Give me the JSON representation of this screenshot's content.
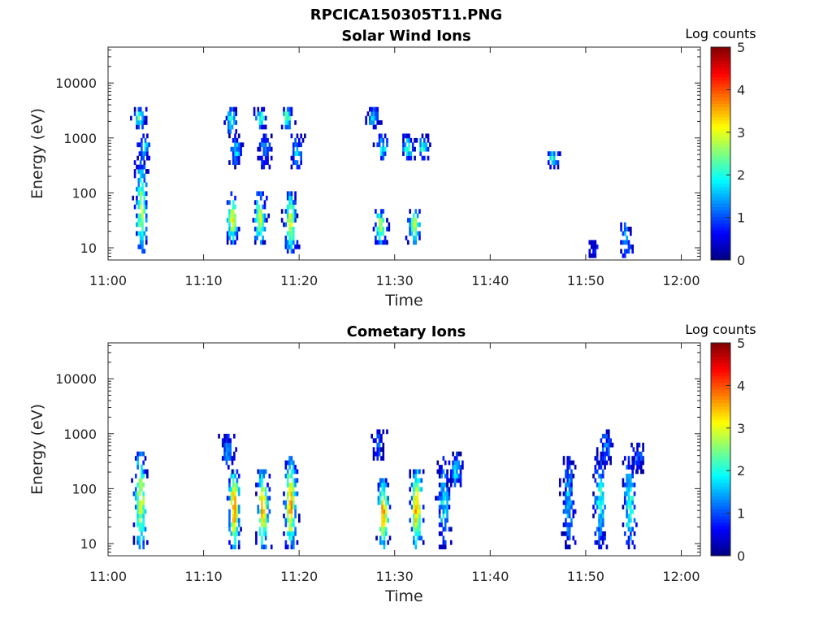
{
  "figure": {
    "suptitle": "RPCICA150305T11.PNG"
  },
  "colors": {
    "jet": [
      "#00007f",
      "#0000ff",
      "#007fff",
      "#00ffff",
      "#7fff7f",
      "#ffff00",
      "#ff7f00",
      "#ff0000",
      "#7f0000"
    ]
  },
  "chart_data": [
    {
      "type": "heatmap",
      "title": "Solar Wind Ions",
      "xlabel": "Time",
      "ylabel": "Energy (eV)",
      "x_ticks": [
        "11:00",
        "11:10",
        "11:20",
        "11:30",
        "11:40",
        "11:50",
        "12:00"
      ],
      "x_tick_minutes": [
        0,
        10,
        20,
        30,
        40,
        50,
        60
      ],
      "xlim_minutes": [
        0,
        62
      ],
      "y_scale": "log",
      "ylim": [
        6,
        45000
      ],
      "y_ticks": [
        "10",
        "100",
        "1000",
        "10000"
      ],
      "y_tick_values": [
        10,
        100,
        1000,
        10000
      ],
      "colorbar": {
        "label": "Log counts",
        "range": [
          0,
          5
        ],
        "ticks": [
          "0",
          "1",
          "2",
          "3",
          "4",
          "5"
        ]
      },
      "clusters": [
        {
          "t": 3.4,
          "e_lo": 8,
          "e_hi": 300,
          "peak": 2.7
        },
        {
          "t": 3.2,
          "e_lo": 1500,
          "e_hi": 3000,
          "peak": 2.2
        },
        {
          "t": 3.7,
          "e_lo": 400,
          "e_hi": 1000,
          "peak": 1.6
        },
        {
          "t": 12.9,
          "e_lo": 12,
          "e_hi": 80,
          "peak": 3.0
        },
        {
          "t": 12.8,
          "e_lo": 1200,
          "e_hi": 3000,
          "peak": 2.1
        },
        {
          "t": 13.3,
          "e_lo": 300,
          "e_hi": 900,
          "peak": 1.6
        },
        {
          "t": 15.8,
          "e_lo": 12,
          "e_hi": 80,
          "peak": 3.0
        },
        {
          "t": 15.9,
          "e_lo": 1500,
          "e_hi": 3000,
          "peak": 2.0
        },
        {
          "t": 16.3,
          "e_lo": 300,
          "e_hi": 900,
          "peak": 1.5
        },
        {
          "t": 19.0,
          "e_lo": 8,
          "e_hi": 90,
          "peak": 3.0
        },
        {
          "t": 18.6,
          "e_lo": 1500,
          "e_hi": 3000,
          "peak": 2.4
        },
        {
          "t": 19.6,
          "e_lo": 300,
          "e_hi": 900,
          "peak": 1.6
        },
        {
          "t": 28.4,
          "e_lo": 12,
          "e_hi": 40,
          "peak": 2.9
        },
        {
          "t": 27.6,
          "e_lo": 1500,
          "e_hi": 3000,
          "peak": 1.8
        },
        {
          "t": 28.6,
          "e_lo": 400,
          "e_hi": 900,
          "peak": 2.0
        },
        {
          "t": 32.0,
          "e_lo": 12,
          "e_hi": 40,
          "peak": 3.0
        },
        {
          "t": 31.3,
          "e_lo": 400,
          "e_hi": 900,
          "peak": 2.1
        },
        {
          "t": 32.9,
          "e_lo": 400,
          "e_hi": 900,
          "peak": 2.1
        },
        {
          "t": 46.5,
          "e_lo": 300,
          "e_hi": 500,
          "peak": 2.0
        },
        {
          "t": 50.8,
          "e_lo": 6,
          "e_hi": 12,
          "peak": 0.7
        },
        {
          "t": 54.1,
          "e_lo": 6,
          "e_hi": 25,
          "peak": 1.5
        }
      ]
    },
    {
      "type": "heatmap",
      "title": "Cometary Ions",
      "xlabel": "Time",
      "ylabel": "Energy (eV)",
      "x_ticks": [
        "11:00",
        "11:10",
        "11:20",
        "11:30",
        "11:40",
        "11:50",
        "12:00"
      ],
      "x_tick_minutes": [
        0,
        10,
        20,
        30,
        40,
        50,
        60
      ],
      "xlim_minutes": [
        0,
        62
      ],
      "y_scale": "log",
      "ylim": [
        6,
        45000
      ],
      "y_ticks": [
        "10",
        "100",
        "1000",
        "10000"
      ],
      "y_tick_values": [
        10,
        100,
        1000,
        10000
      ],
      "colorbar": {
        "label": "Log counts",
        "range": [
          0,
          5
        ],
        "ticks": [
          "0",
          "1",
          "2",
          "3",
          "4",
          "5"
        ]
      },
      "clusters": [
        {
          "t": 3.3,
          "e_lo": 8,
          "e_hi": 400,
          "peak": 3.2
        },
        {
          "t": 13.1,
          "e_lo": 8,
          "e_hi": 200,
          "peak": 3.6
        },
        {
          "t": 12.4,
          "e_lo": 200,
          "e_hi": 800,
          "peak": 1.3
        },
        {
          "t": 16.1,
          "e_lo": 8,
          "e_hi": 200,
          "peak": 3.5
        },
        {
          "t": 19.0,
          "e_lo": 8,
          "e_hi": 300,
          "peak": 3.6
        },
        {
          "t": 28.7,
          "e_lo": 8,
          "e_hi": 120,
          "peak": 3.6
        },
        {
          "t": 28.2,
          "e_lo": 300,
          "e_hi": 1000,
          "peak": 1.0
        },
        {
          "t": 32.2,
          "e_lo": 8,
          "e_hi": 200,
          "peak": 3.6
        },
        {
          "t": 35.1,
          "e_lo": 8,
          "e_hi": 300,
          "peak": 1.8
        },
        {
          "t": 36.3,
          "e_lo": 100,
          "e_hi": 400,
          "peak": 1.7
        },
        {
          "t": 48.1,
          "e_lo": 8,
          "e_hi": 300,
          "peak": 1.6
        },
        {
          "t": 51.4,
          "e_lo": 8,
          "e_hi": 400,
          "peak": 2.0
        },
        {
          "t": 52.0,
          "e_lo": 300,
          "e_hi": 1000,
          "peak": 1.2
        },
        {
          "t": 54.5,
          "e_lo": 8,
          "e_hi": 300,
          "peak": 2.2
        },
        {
          "t": 55.4,
          "e_lo": 200,
          "e_hi": 600,
          "peak": 1.0
        }
      ]
    }
  ]
}
